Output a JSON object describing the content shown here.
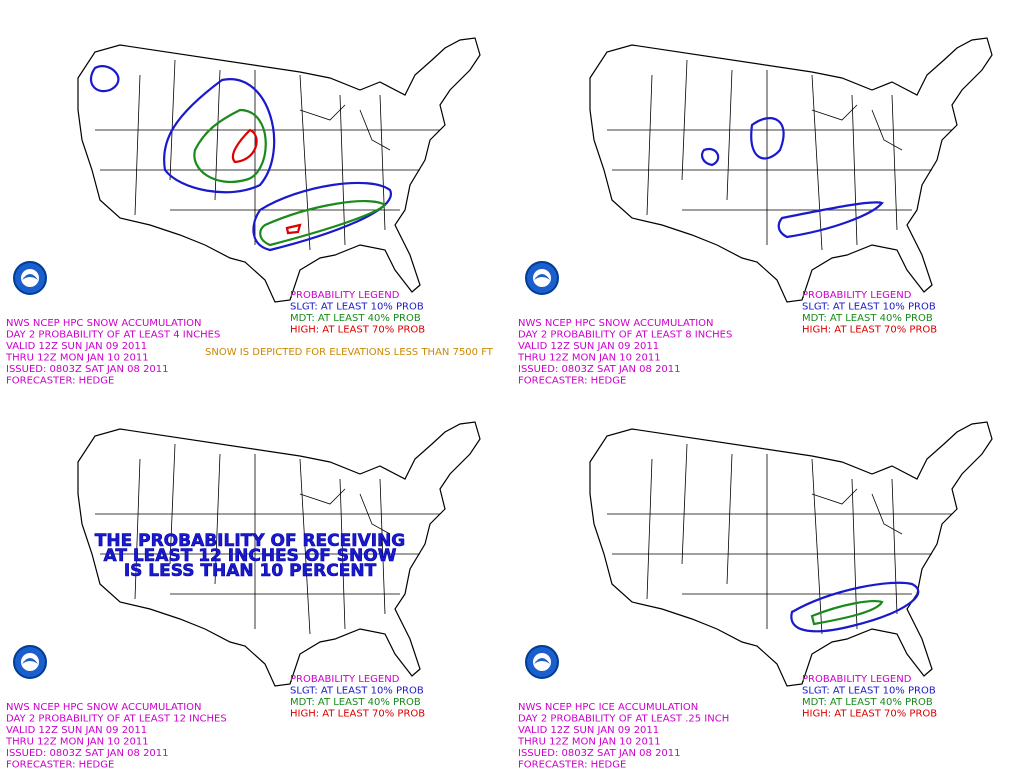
{
  "panels": [
    {
      "header": [
        "NWS NCEP HPC SNOW ACCUMULATION",
        "DAY 2 PROBABILITY OF AT LEAST 4 INCHES",
        "VALID 12Z SUN JAN 09 2011",
        "THRU 12Z MON JAN 10 2011",
        "ISSUED: 0803Z SAT JAN 08 2011",
        "FORECASTER: HEDGE"
      ],
      "legend": {
        "title": "PROBABILITY LEGEND",
        "items": [
          "SLGT: AT LEAST 10% PROB",
          "MDT: AT LEAST 40% PROB",
          "HIGH: AT LEAST 70% PROB"
        ]
      },
      "note": "SNOW IS DEPICTED FOR ELEVATIONS LESS THAN 7500 FT"
    },
    {
      "header": [
        "NWS NCEP HPC SNOW ACCUMULATION",
        "DAY 2 PROBABILITY OF AT LEAST 8 INCHES",
        "VALID 12Z SUN JAN 09 2011",
        "THRU 12Z MON JAN 10 2011",
        "ISSUED: 0803Z SAT JAN 08 2011",
        "FORECASTER: HEDGE"
      ],
      "legend": {
        "title": "PROBABILITY LEGEND",
        "items": [
          "SLGT: AT LEAST 10% PROB",
          "MDT: AT LEAST 40% PROB",
          "HIGH: AT LEAST 70% PROB"
        ]
      }
    },
    {
      "header": [
        "NWS NCEP HPC SNOW ACCUMULATION",
        "DAY 2 PROBABILITY OF AT LEAST 12 INCHES",
        "VALID 12Z SUN JAN 09 2011",
        "THRU 12Z MON JAN 10 2011",
        "ISSUED: 0803Z SAT JAN 08 2011",
        "FORECASTER: HEDGE"
      ],
      "legend": {
        "title": "PROBABILITY LEGEND",
        "items": [
          "SLGT: AT LEAST 10% PROB",
          "MDT: AT LEAST 40% PROB",
          "HIGH: AT LEAST 70% PROB"
        ]
      },
      "message": [
        "THE PROBABILITY OF RECEIVING",
        "AT LEAST 12 INCHES OF SNOW",
        "IS LESS THAN 10 PERCENT"
      ]
    },
    {
      "header": [
        "NWS NCEP HPC ICE ACCUMULATION",
        "DAY 2 PROBABILITY OF AT LEAST .25 INCH",
        "VALID 12Z SUN JAN 09 2011",
        "THRU 12Z MON JAN 10 2011",
        "ISSUED: 0803Z SAT JAN 08 2011",
        "FORECASTER: HEDGE"
      ],
      "legend": {
        "title": "PROBABILITY LEGEND",
        "items": [
          "SLGT: AT LEAST 10% PROB",
          "MDT: AT LEAST 40% PROB",
          "HIGH: AT LEAST 70% PROB"
        ]
      }
    }
  ]
}
